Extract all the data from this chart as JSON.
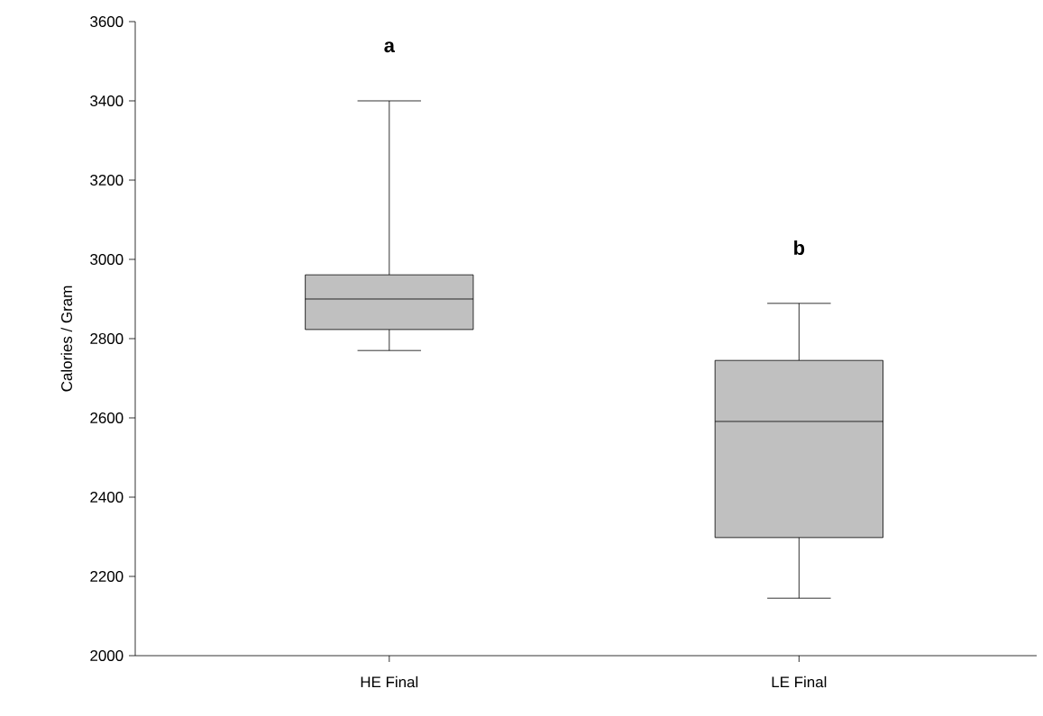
{
  "chart_data": {
    "type": "box",
    "ylabel": "Calories / Gram",
    "categories": [
      "HE Final",
      "LE Final"
    ],
    "boxes": [
      {
        "low": 2770,
        "q1": 2823,
        "median": 2900,
        "q3": 2961,
        "high": 3400
      },
      {
        "low": 2145,
        "q1": 2298,
        "median": 2591,
        "q3": 2745,
        "high": 2889
      }
    ],
    "color": "#c0c0c0",
    "ylim": [
      2000,
      3600
    ],
    "yticks": [
      2000,
      2200,
      2400,
      2600,
      2800,
      3000,
      3200,
      3400,
      3600
    ],
    "annotations": [
      "a",
      "b"
    ],
    "grid": false
  }
}
